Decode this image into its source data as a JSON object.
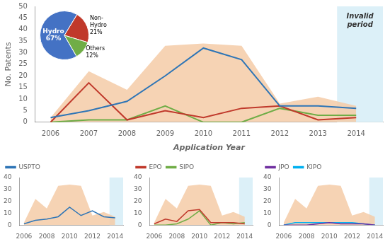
{
  "chart_data": [
    {
      "type": "line",
      "x": [
        2006,
        2007,
        2008,
        2009,
        2010,
        2011,
        2012,
        2013,
        2014
      ],
      "xlim": [
        2005.6,
        2014.7
      ],
      "xticks": [
        2006,
        2007,
        2008,
        2009,
        2010,
        2011,
        2012,
        2013,
        2014
      ],
      "ylim": [
        0,
        50
      ],
      "yticks": [
        0,
        5,
        10,
        15,
        20,
        25,
        30,
        35,
        40,
        45,
        50
      ],
      "xlabel": "Application Year",
      "ylabel": "No. Patents",
      "grid": false,
      "series": [
        {
          "type": "area",
          "color": "#F5CBA7",
          "values": [
            2,
            22,
            14,
            33,
            34,
            33,
            8,
            11,
            7
          ]
        },
        {
          "type": "line",
          "color": "#2E75B6",
          "values": [
            2,
            5,
            9,
            20,
            32,
            27,
            7,
            7,
            6
          ]
        },
        {
          "type": "line",
          "color": "#C0392B",
          "values": [
            0,
            17,
            1,
            5,
            2,
            6,
            7,
            1,
            2
          ]
        },
        {
          "type": "line",
          "color": "#70AD47",
          "values": [
            0,
            1,
            1,
            7,
            0,
            0,
            6,
            3,
            3
          ]
        }
      ],
      "shaded": {
        "x": [
          2013.5,
          2014.7
        ],
        "color": "#DCF0F8"
      },
      "annotations": [
        {
          "text": "Invalid\nperiod",
          "x": 2014.1,
          "y": 47
        }
      ]
    },
    {
      "type": "pie",
      "categories": [
        "Hydro",
        "Non-\nHydro",
        "Others"
      ],
      "values": [
        67,
        21,
        12
      ],
      "value_labels": [
        "67%",
        "21%",
        "12%"
      ],
      "colors": [
        "#4472C4",
        "#C0392B",
        "#70AD47"
      ],
      "data_labels": true
    },
    {
      "type": "line",
      "x": [
        2006,
        2007,
        2008,
        2009,
        2010,
        2011,
        2012,
        2013,
        2014
      ],
      "xlim": [
        2005.6,
        2014.7
      ],
      "xticks": [
        2006,
        2008,
        2010,
        2012,
        2014
      ],
      "ylim": [
        0,
        40
      ],
      "yticks": [
        0,
        10,
        20,
        30,
        40
      ],
      "grid": false,
      "legend": "upper left",
      "series": [
        {
          "type": "area",
          "color": "#F5CBA7",
          "values": [
            2,
            22,
            14,
            33,
            34,
            33,
            8,
            11,
            7
          ]
        },
        {
          "type": "line",
          "name": "USPTO",
          "color": "#2E75B6",
          "values": [
            1,
            4,
            5,
            7,
            15,
            8,
            12,
            7,
            6
          ]
        }
      ],
      "shaded": {
        "x": [
          2013.5,
          2014.7
        ],
        "color": "#DCF0F8"
      }
    },
    {
      "type": "line",
      "x": [
        2006,
        2007,
        2008,
        2009,
        2010,
        2011,
        2012,
        2013,
        2014
      ],
      "xlim": [
        2005.6,
        2014.7
      ],
      "xticks": [
        2006,
        2008,
        2010,
        2012,
        2014
      ],
      "ylim": [
        0,
        40
      ],
      "yticks": [
        0,
        10,
        20,
        30,
        40
      ],
      "grid": false,
      "legend": "upper left",
      "series": [
        {
          "type": "area",
          "color": "#F5CBA7",
          "values": [
            2,
            22,
            14,
            33,
            34,
            33,
            8,
            11,
            7
          ]
        },
        {
          "type": "line",
          "name": "EPO",
          "color": "#C0392B",
          "values": [
            1,
            5,
            3,
            12,
            13,
            2,
            2,
            2,
            1
          ]
        },
        {
          "type": "line",
          "name": "SIPO",
          "color": "#70AD47",
          "values": [
            0,
            0,
            1,
            5,
            12,
            0,
            2,
            1,
            2
          ]
        }
      ],
      "shaded": {
        "x": [
          2013.5,
          2014.7
        ],
        "color": "#DCF0F8"
      }
    },
    {
      "type": "line",
      "x": [
        2006,
        2007,
        2008,
        2009,
        2010,
        2011,
        2012,
        2013,
        2014
      ],
      "xlim": [
        2005.6,
        2014.7
      ],
      "xticks": [
        2006,
        2008,
        2010,
        2012,
        2014
      ],
      "ylim": [
        0,
        40
      ],
      "yticks": [
        0,
        10,
        20,
        30,
        40
      ],
      "grid": false,
      "legend": "upper left",
      "series": [
        {
          "type": "area",
          "color": "#F5CBA7",
          "values": [
            2,
            22,
            14,
            33,
            34,
            33,
            8,
            11,
            7
          ]
        },
        {
          "type": "line",
          "name": "JPO",
          "color": "#7030A0",
          "values": [
            0,
            0,
            0,
            1,
            2,
            1,
            1,
            1,
            0
          ]
        },
        {
          "type": "line",
          "name": "KIPO",
          "color": "#00B0F0",
          "values": [
            0,
            2,
            2,
            2,
            2,
            2,
            2,
            1,
            0
          ]
        }
      ],
      "shaded": {
        "x": [
          2013.5,
          2014.7
        ],
        "color": "#DCF0F8"
      }
    }
  ]
}
